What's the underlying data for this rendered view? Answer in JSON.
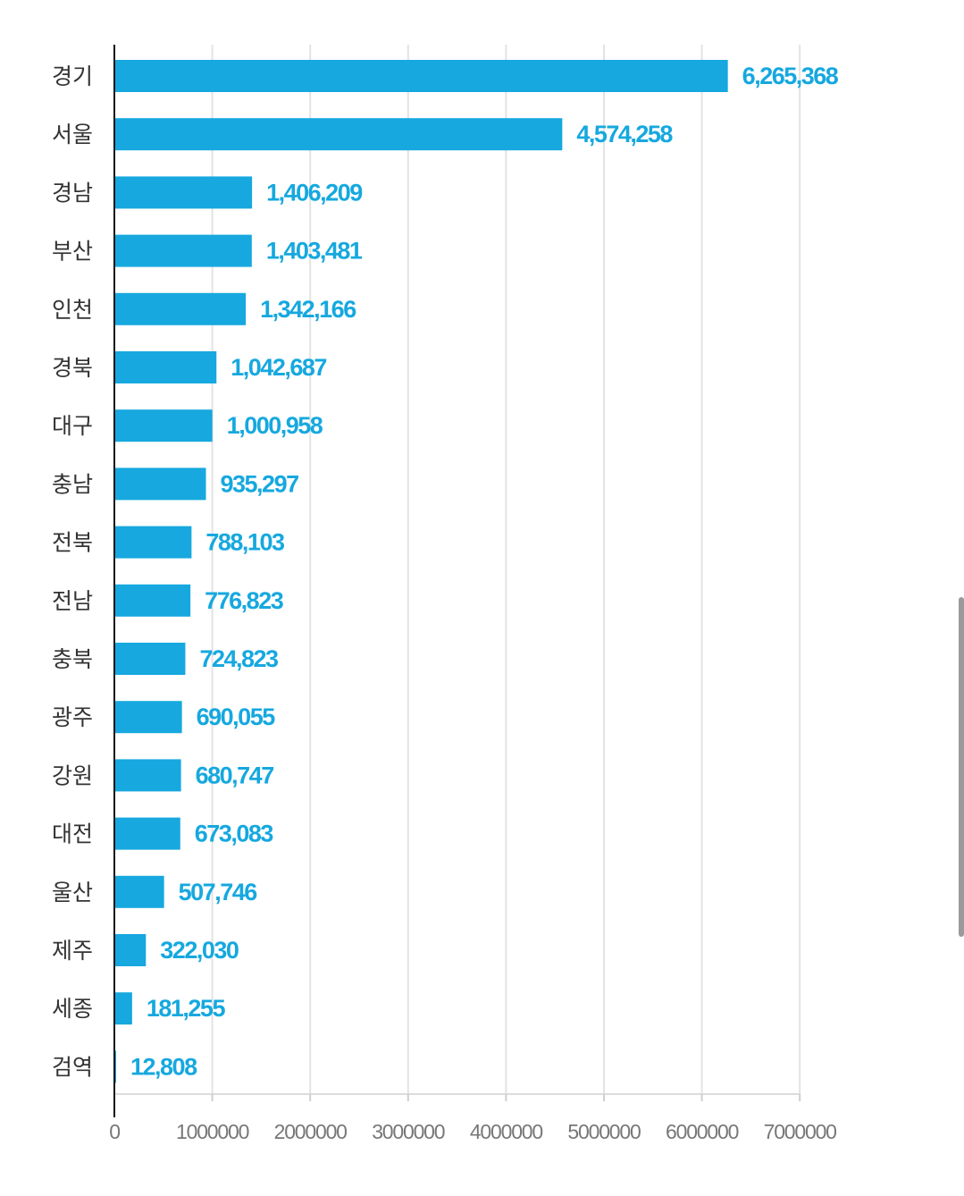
{
  "chart_data": {
    "type": "bar",
    "orientation": "horizontal",
    "title": "",
    "xlabel": "",
    "ylabel": "",
    "xlim": [
      0,
      7000000
    ],
    "grid": true,
    "bar_color": "#16a8df",
    "label_color": "#16a8df",
    "categories": [
      "경기",
      "서울",
      "경남",
      "부산",
      "인천",
      "경북",
      "대구",
      "충남",
      "전북",
      "전남",
      "충북",
      "광주",
      "강원",
      "대전",
      "울산",
      "제주",
      "세종",
      "검역"
    ],
    "values": [
      6265368,
      4574258,
      1406209,
      1403481,
      1342166,
      1042687,
      1000958,
      935297,
      788103,
      776823,
      724823,
      690055,
      680747,
      673083,
      507746,
      322030,
      181255,
      12808
    ],
    "value_labels": [
      "6,265,368",
      "4,574,258",
      "1,406,209",
      "1,403,481",
      "1,342,166",
      "1,042,687",
      "1,000,958",
      "935,297",
      "788,103",
      "776,823",
      "724,823",
      "690,055",
      "680,747",
      "673,083",
      "507,746",
      "322,030",
      "181,255",
      "12,808"
    ],
    "x_ticks": [
      0,
      1000000,
      2000000,
      3000000,
      4000000,
      5000000,
      6000000,
      7000000
    ],
    "x_tick_labels": [
      "0",
      "1000000",
      "2000000",
      "3000000",
      "4000000",
      "5000000",
      "6000000",
      "7000000"
    ]
  }
}
